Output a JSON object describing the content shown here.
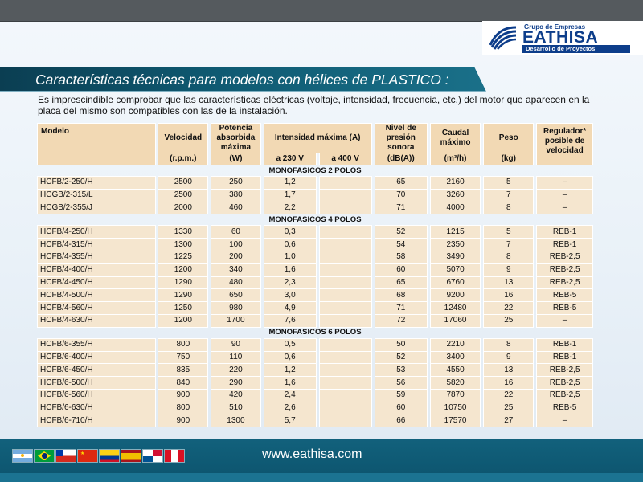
{
  "logo": {
    "group": "Grupo de Empresas",
    "name": "EATHISA",
    "tagline": "Desarrollo de Proyectos"
  },
  "title": "Características técnicas para modelos con hélices de PLASTICO :",
  "intro": "Es imprescindible comprobar que las características eléctricas (voltaje, intensidad, frecuencia, etc.) del motor que aparecen en la placa del mismo son compatibles con las de la instalación.",
  "table": {
    "headers": {
      "model": "Modelo",
      "speed": "Velocidad",
      "power": "Potencia absorbida máxima",
      "current": "Intensidad máxima (A)",
      "noise": "Nivel de presión sonora",
      "flow": "Caudal máximo",
      "weight": "Peso",
      "regulator": "Regulador* posible de velocidad"
    },
    "units": {
      "speed": "(r.p.m.)",
      "power": "(W)",
      "v230": "a 230 V",
      "v400": "a 400 V",
      "noise": "(dB(A))",
      "flow": "(m³/h)",
      "weight": "(kg)"
    },
    "sections": [
      {
        "title": "MONOFASICOS 2 POLOS",
        "rows": [
          [
            "HCFB/2-250/H",
            "2500",
            "250",
            "1,2",
            "",
            "65",
            "2160",
            "5",
            "–"
          ],
          [
            "HCGB/2-315/L",
            "2500",
            "380",
            "1,7",
            "",
            "70",
            "3260",
            "7",
            "–"
          ],
          [
            "HCGB/2-355/J",
            "2000",
            "460",
            "2,2",
            "",
            "71",
            "4000",
            "8",
            "–"
          ]
        ]
      },
      {
        "title": "MONOFASICOS 4 POLOS",
        "rows": [
          [
            "HCFB/4-250/H",
            "1330",
            "60",
            "0,3",
            "",
            "52",
            "1215",
            "5",
            "REB-1"
          ],
          [
            "HCFB/4-315/H",
            "1300",
            "100",
            "0,6",
            "",
            "54",
            "2350",
            "7",
            "REB-1"
          ],
          [
            "HCFB/4-355/H",
            "1225",
            "200",
            "1,0",
            "",
            "58",
            "3490",
            "8",
            "REB-2,5"
          ],
          [
            "HCFB/4-400/H",
            "1200",
            "340",
            "1,6",
            "",
            "60",
            "5070",
            "9",
            "REB-2,5"
          ],
          [
            "HCFB/4-450/H",
            "1290",
            "480",
            "2,3",
            "",
            "65",
            "6760",
            "13",
            "REB-2,5"
          ],
          [
            "HCFB/4-500/H",
            "1290",
            "650",
            "3,0",
            "",
            "68",
            "9200",
            "16",
            "REB-5"
          ],
          [
            "HCFB/4-560/H",
            "1250",
            "980",
            "4,9",
            "",
            "71",
            "12480",
            "22",
            "REB-5"
          ],
          [
            "HCFB/4-630/H",
            "1200",
            "1700",
            "7,6",
            "",
            "72",
            "17060",
            "25",
            "–"
          ]
        ]
      },
      {
        "title": "MONOFASICOS 6 POLOS",
        "rows": [
          [
            "HCFB/6-355/H",
            "800",
            "90",
            "0,5",
            "",
            "50",
            "2210",
            "8",
            "REB-1"
          ],
          [
            "HCFB/6-400/H",
            "750",
            "110",
            "0,6",
            "",
            "52",
            "3400",
            "9",
            "REB-1"
          ],
          [
            "HCFB/6-450/H",
            "835",
            "220",
            "1,2",
            "",
            "53",
            "4550",
            "13",
            "REB-2,5"
          ],
          [
            "HCFB/6-500/H",
            "840",
            "290",
            "1,6",
            "",
            "56",
            "5820",
            "16",
            "REB-2,5"
          ],
          [
            "HCFB/6-560/H",
            "900",
            "420",
            "2,4",
            "",
            "59",
            "7870",
            "22",
            "REB-2,5"
          ],
          [
            "HCFB/6-630/H",
            "800",
            "510",
            "2,6",
            "",
            "60",
            "10750",
            "25",
            "REB-5"
          ],
          [
            "HCFB/6-710/H",
            "900",
            "1300",
            "5,7",
            "",
            "66",
            "17570",
            "27",
            "–"
          ]
        ]
      }
    ]
  },
  "footer": {
    "url": "www.eathisa.com",
    "flags": [
      "argentina-flag",
      "brazil-flag",
      "chile-flag",
      "china-flag",
      "colombia-flag",
      "spain-flag",
      "panama-flag",
      "peru-flag"
    ]
  },
  "colors": {
    "brand": "#0d3d8a",
    "band": "#0f5a72",
    "cell": "#f5e6cf",
    "header": "#f2d9b4"
  }
}
